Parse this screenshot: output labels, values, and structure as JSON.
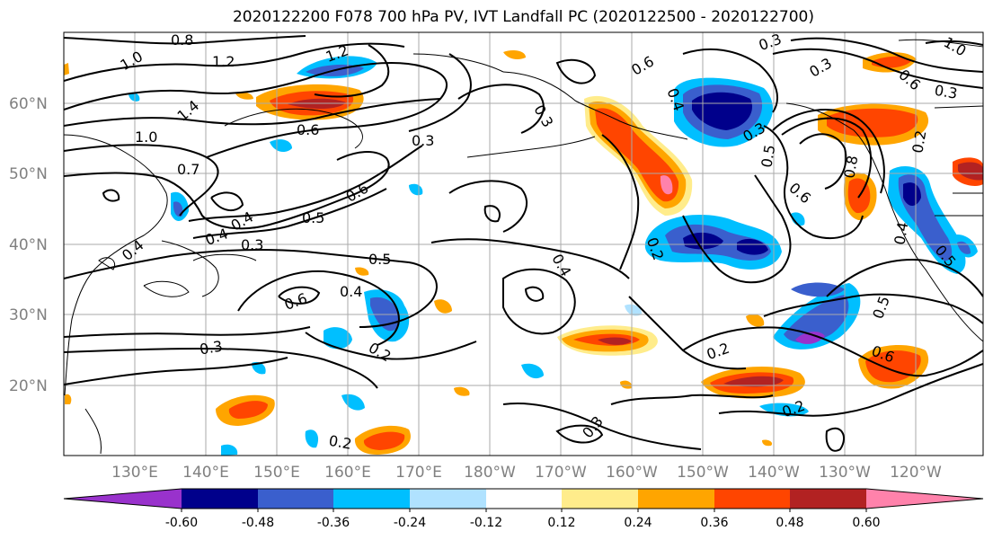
{
  "title": "2020122200 F078 700 hPa PV, IVT Landfall PC (2020122500 - 2020122700)",
  "lat_labels": [
    "60°N",
    "50°N",
    "40°N",
    "30°N",
    "20°N"
  ],
  "lon_labels": [
    "130°E",
    "140°E",
    "150°E",
    "160°E",
    "170°E",
    "180°W",
    "170°W",
    "160°W",
    "150°W",
    "140°W",
    "130°W",
    "120°W"
  ],
  "colorbar": {
    "colors": [
      "#9932cc",
      "#00008b",
      "#3a5fcd",
      "#00bfff",
      "#b0e2ff",
      "#ffffff",
      "#ffec8b",
      "#ffa500",
      "#ff4500",
      "#b22222",
      "#ff82ab"
    ],
    "ticks": [
      "-0.60",
      "-0.48",
      "-0.36",
      "-0.24",
      "-0.12",
      "0.12",
      "0.24",
      "0.36",
      "0.48",
      "0.60"
    ]
  },
  "contour_labels": [
    "1.2",
    "0.8",
    "1.0",
    "1.2",
    "1.4",
    "1.0",
    "0.7",
    "0.6",
    "0.5",
    "0.6",
    "0.3",
    "0.4",
    "0.4",
    "0.4",
    "0.3",
    "0.3",
    "0.5",
    "0.4",
    "0.6",
    "0.3",
    "0.2",
    "0.2",
    "0.4",
    "0.3",
    "0.2",
    "0.2",
    "0.3",
    "0.4",
    "0.6",
    "0.3",
    "0.5",
    "0.8",
    "0.6",
    "0.4",
    "0.5",
    "0.2",
    "0.6",
    "0.5",
    "0.2",
    "0.3",
    "0.3",
    "0.6",
    "1.0"
  ]
}
